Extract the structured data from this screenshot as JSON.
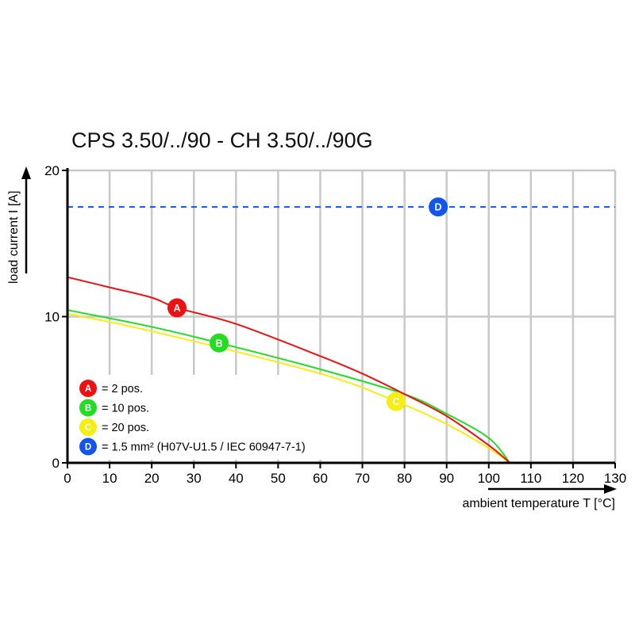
{
  "chart_data": {
    "type": "line",
    "title": "CPS 3.50/../90 - CH 3.50/../90G",
    "xlabel": "ambient temperature T [°C]",
    "ylabel": "load current I [A]",
    "xlim": [
      0,
      130
    ],
    "ylim": [
      0,
      20
    ],
    "xticks": [
      0,
      10,
      20,
      30,
      40,
      50,
      60,
      70,
      80,
      90,
      100,
      110,
      120,
      130
    ],
    "yticks": [
      0,
      10,
      20
    ],
    "grid": true,
    "legend_position": "bottom-left",
    "series": [
      {
        "marker": "A",
        "legend": "= 2 pos.",
        "color": "#ee1111",
        "style": "solid",
        "x": [
          0,
          10,
          20,
          26,
          40,
          60,
          70,
          80,
          90,
          100,
          105
        ],
        "y": [
          12.7,
          12.0,
          11.3,
          10.6,
          9.5,
          7.3,
          6.1,
          4.7,
          3.2,
          1.2,
          0
        ],
        "label_at": [
          26,
          10.6
        ]
      },
      {
        "marker": "B",
        "legend": "= 10 pos.",
        "color": "#22dd22",
        "style": "solid",
        "x": [
          0,
          20,
          36,
          60,
          80,
          90,
          100,
          105
        ],
        "y": [
          10.45,
          9.3,
          8.2,
          6.4,
          4.7,
          3.35,
          1.7,
          0
        ],
        "label_at": [
          36,
          8.2
        ]
      },
      {
        "marker": "C",
        "legend": "= 20 pos.",
        "color": "#f5ee10",
        "style": "solid",
        "x": [
          0,
          20,
          60,
          78,
          90,
          100,
          105
        ],
        "y": [
          10.2,
          9.0,
          6.1,
          4.2,
          2.65,
          1.0,
          0
        ],
        "label_at": [
          78,
          4.2
        ]
      },
      {
        "marker": "D",
        "legend": "= 1.5 mm² (H07V-U1.5 / IEC 60947-7-1)",
        "color": "#1155ee",
        "style": "dashed",
        "x": [
          0,
          130
        ],
        "y": [
          17.5,
          17.5
        ],
        "label_at": [
          88,
          17.5
        ]
      }
    ]
  }
}
